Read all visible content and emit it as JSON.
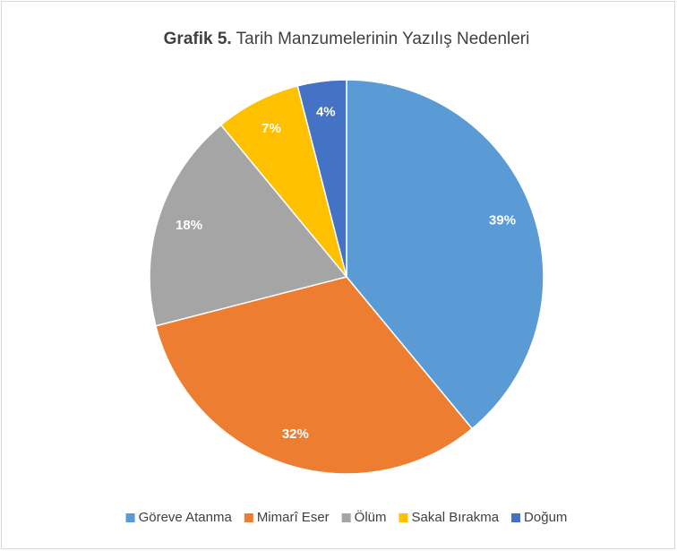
{
  "chart_data": {
    "type": "pie",
    "title_prefix": "Grafik 5.",
    "title": "Tarih Manzumelerinin Yazılış Nedenleri",
    "categories": [
      "Göreve Atanma",
      "Mimarî Eser",
      "Ölüm",
      "Sakal Bırakma",
      "Doğum"
    ],
    "values": [
      39,
      32,
      18,
      7,
      4
    ],
    "value_labels": [
      "39%",
      "32%",
      "18%",
      "7%",
      "4%"
    ],
    "colors": [
      "#5b9bd5",
      "#ed7d31",
      "#a5a5a5",
      "#ffc000",
      "#4472c4"
    ],
    "legend": "bottom"
  }
}
